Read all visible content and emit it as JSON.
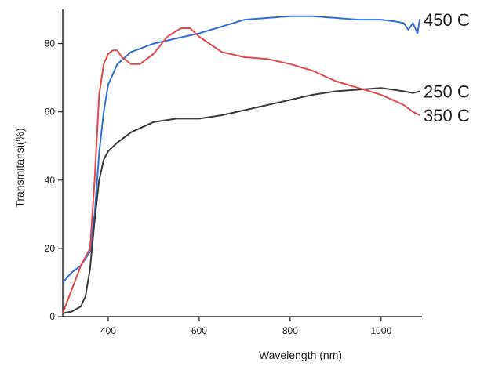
{
  "chart_data": {
    "type": "line",
    "title": "",
    "xlabel": "Wavelength (nm)",
    "ylabel": "Transmitansi(%)",
    "xlim": [
      300,
      1090
    ],
    "ylim": [
      0,
      90
    ],
    "xticks": [
      400,
      600,
      800,
      1000
    ],
    "yticks": [
      0,
      20,
      40,
      60,
      80
    ],
    "grid": false,
    "legend_placement": "right, inline at line ends",
    "series": [
      {
        "name": "450 C",
        "color": "#2f6fd6",
        "x": [
          300,
          320,
          340,
          360,
          370,
          380,
          390,
          400,
          420,
          450,
          500,
          550,
          600,
          650,
          700,
          750,
          800,
          850,
          900,
          950,
          1000,
          1030,
          1050,
          1060,
          1070,
          1080,
          1085
        ],
        "y": [
          10,
          13,
          15,
          19,
          30,
          48,
          60,
          68,
          74,
          77.5,
          80,
          81.5,
          83,
          85,
          87,
          87.5,
          88,
          88,
          87.5,
          87,
          87,
          86.5,
          86,
          84,
          86,
          83,
          87
        ]
      },
      {
        "name": "250 C",
        "color": "#3a3a3a",
        "x": [
          300,
          320,
          340,
          350,
          360,
          370,
          380,
          390,
          400,
          420,
          450,
          500,
          550,
          600,
          650,
          700,
          750,
          800,
          850,
          900,
          950,
          1000,
          1050,
          1070,
          1085
        ],
        "y": [
          1,
          1.5,
          3,
          6,
          14,
          28,
          40,
          46,
          48.5,
          51,
          54,
          57,
          58,
          58,
          59,
          60.5,
          62,
          63.5,
          65,
          66,
          66.5,
          67,
          66,
          65.5,
          66
        ]
      },
      {
        "name": "350 C",
        "color": "#e0484a",
        "x": [
          300,
          320,
          340,
          360,
          370,
          380,
          390,
          400,
          410,
          420,
          430,
          450,
          470,
          500,
          530,
          560,
          580,
          600,
          650,
          700,
          750,
          800,
          850,
          900,
          950,
          1000,
          1050,
          1070,
          1085
        ],
        "y": [
          1,
          8,
          15,
          20,
          40,
          65,
          74,
          77,
          78,
          78,
          76,
          74,
          74,
          77,
          82,
          84.5,
          84.5,
          82,
          77.5,
          76,
          75.5,
          74,
          72,
          69,
          67,
          65,
          62,
          60,
          59
        ]
      }
    ]
  }
}
